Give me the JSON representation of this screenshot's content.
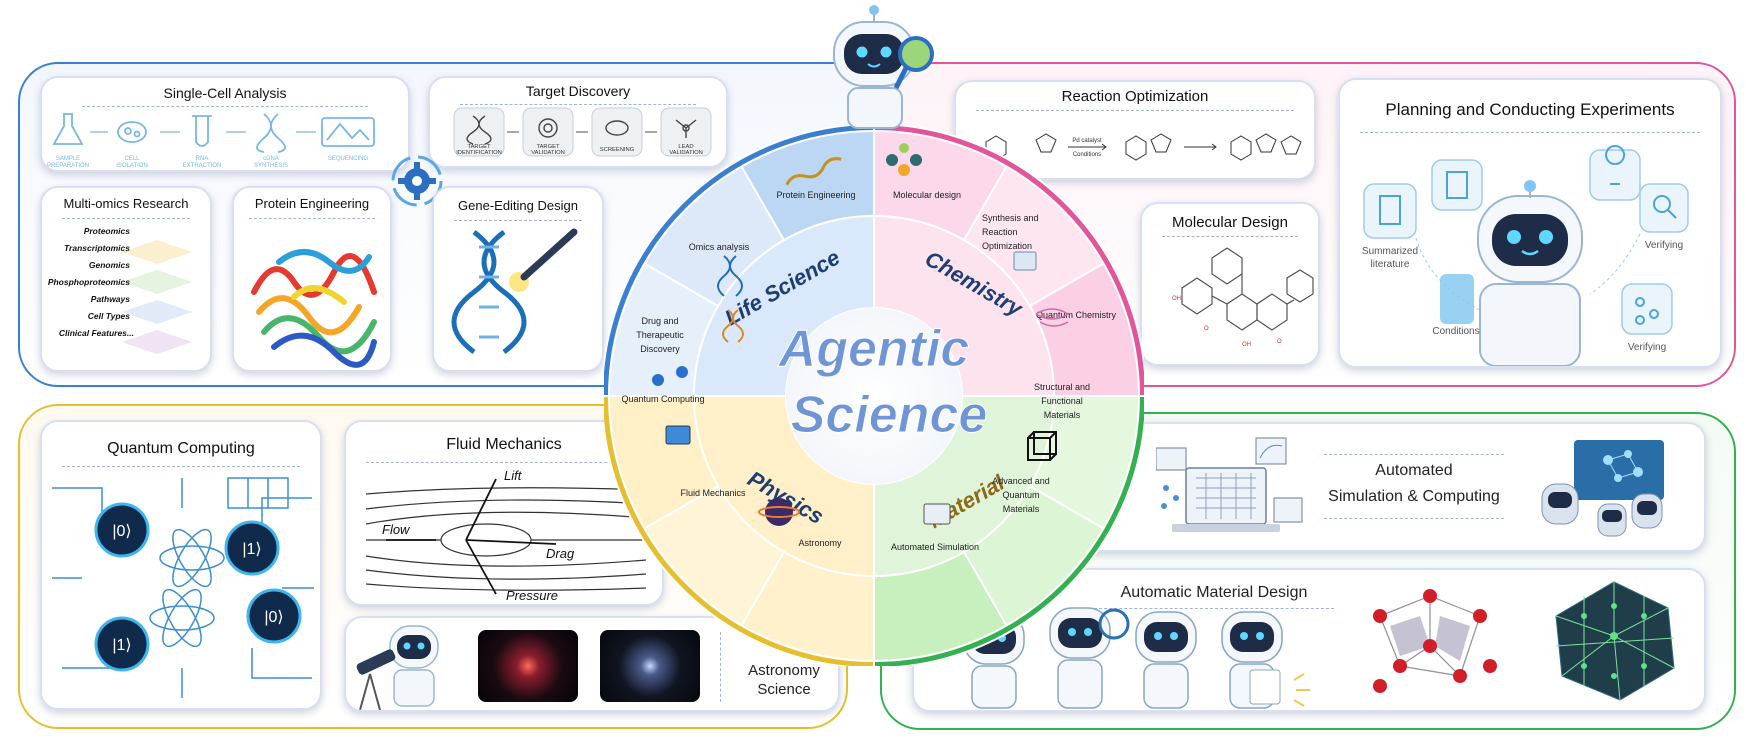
{
  "center": {
    "title_line1": "Agentic",
    "title_line2": "Science"
  },
  "domains": {
    "life": "Life Science",
    "chemistry": "Chemistry",
    "physics": "Physics",
    "material": "Material"
  },
  "ring": {
    "protein_engineering": "Protein Engineering",
    "omics_analysis": "Omics analysis",
    "drug_line1": "Drug and",
    "drug_line2": "Therapeutic",
    "drug_line3": "Discovery",
    "molecular_design": "Molecular design",
    "synthesis_line1": "Synthesis and",
    "synthesis_line2": "Reaction",
    "synthesis_line3": "Optimization",
    "quantum_chemistry": "Quantum Chemistry",
    "structural_line1": "Structural and",
    "structural_line2": "Functional",
    "structural_line3": "Materials",
    "advanced_line1": "Advanced and",
    "advanced_line2": "Quantum",
    "advanced_line3": "Materials",
    "automated_simulation": "Automated Simulation",
    "quantum_computing": "Quantum Computing",
    "fluid_mechanics": "Fluid Mechanics",
    "astronomy": "Astronomy"
  },
  "life_cards": {
    "single_cell": {
      "title": "Single-Cell Analysis",
      "steps": [
        "SAMPLE PREPARATION",
        "CELL ISOLATION",
        "RNA EXTRACTION",
        "cDNA SYNTHESIS",
        "SEQUENCING"
      ]
    },
    "target_discovery": {
      "title": "Target Discovery",
      "steps": [
        "TARGET IDENTIFICATION",
        "TARGET VALIDATION",
        "SCREENING",
        "LEAD VALIDATION"
      ]
    },
    "multi_omics": {
      "title": "Multi-omics Research",
      "layers": [
        "Proteomics",
        "Transcriptomics",
        "Genomics",
        "Phosphoproteomics",
        "Pathways",
        "Cell Types",
        "Clinical Features..."
      ]
    },
    "protein_engineering": {
      "title": "Protein Engineering"
    },
    "gene_editing": {
      "title": "Gene-Editing Design"
    }
  },
  "chem_cards": {
    "reaction_optimization": {
      "title": "Reaction Optimization",
      "catalyst_line1": "Pd catalyst",
      "catalyst_line2": "Conditions"
    },
    "molecular_design": {
      "title": "Molecular Design"
    },
    "planning": {
      "title": "Planning and Conducting Experiments",
      "summarized_line1": "Summarized",
      "summarized_line2": "literature",
      "conditions": "Conditions",
      "verifying_top": "Verifying",
      "verifying_bottom": "Verifying"
    }
  },
  "physics_cards": {
    "quantum_computing": {
      "title": "Quantum Computing",
      "qubits": [
        "|0⟩",
        "|1⟩",
        "|1⟩",
        "|0⟩"
      ]
    },
    "fluid_mechanics": {
      "title": "Fluid Mechanics",
      "lift": "Lift",
      "flow": "Flow",
      "drag": "Drag",
      "pressure": "Pressure"
    },
    "astronomy": {
      "title_line1": "Astronomy",
      "title_line2": "Science"
    }
  },
  "material_cards": {
    "automated": {
      "title_line1": "Automated",
      "title_line2": "Simulation & Computing"
    },
    "material_design": {
      "title": "Automatic Material Design"
    }
  },
  "colors": {
    "life": "#3a7fd0",
    "chemistry": "#e2559a",
    "physics": "#e5bf2e",
    "material": "#33b04f",
    "agentic_text": "#6f95d6"
  }
}
